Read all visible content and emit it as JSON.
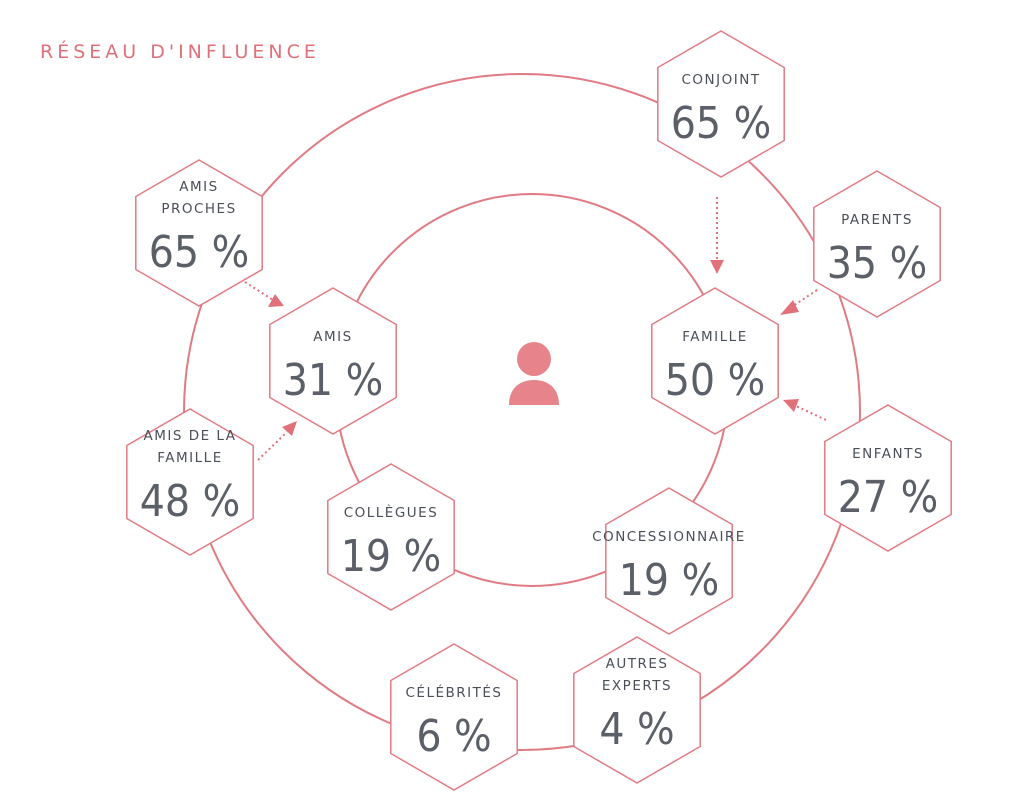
{
  "title": "RÉSEAU D'INFLUENCE",
  "center_icon": "person-icon",
  "colors": {
    "accent": "#e07b84",
    "text": "#4a4f58"
  },
  "nodes": {
    "conjoint": {
      "label": [
        "CONJOINT"
      ],
      "value": "65 %"
    },
    "amis_proches": {
      "label": [
        "AMIS",
        "PROCHES"
      ],
      "value": "65 %"
    },
    "parents": {
      "label": [
        "PARENTS"
      ],
      "value": "35 %"
    },
    "amis": {
      "label": [
        "AMIS"
      ],
      "value": "31 %"
    },
    "famille": {
      "label": [
        "FAMILLE"
      ],
      "value": "50 %"
    },
    "amis_de_la_famille": {
      "label": [
        "AMIS DE LA",
        "FAMILLE"
      ],
      "value": "48 %"
    },
    "enfants": {
      "label": [
        "ENFANTS"
      ],
      "value": "27 %"
    },
    "collegues": {
      "label": [
        "COLLÈGUES"
      ],
      "value": "19 %"
    },
    "concessionnaire": {
      "label": [
        "CONCESSIONNAIRE"
      ],
      "value": "19 %"
    },
    "celebrites": {
      "label": [
        "CÉLÉBRITÉS"
      ],
      "value": "6 %"
    },
    "autres_experts": {
      "label": [
        "AUTRES",
        "EXPERTS"
      ],
      "value": "4 %"
    }
  },
  "edges": [
    {
      "from": "conjoint",
      "to": "famille"
    },
    {
      "from": "parents",
      "to": "famille"
    },
    {
      "from": "enfants",
      "to": "famille"
    },
    {
      "from": "amis_proches",
      "to": "amis"
    },
    {
      "from": "amis_de_la_famille",
      "to": "amis"
    }
  ]
}
